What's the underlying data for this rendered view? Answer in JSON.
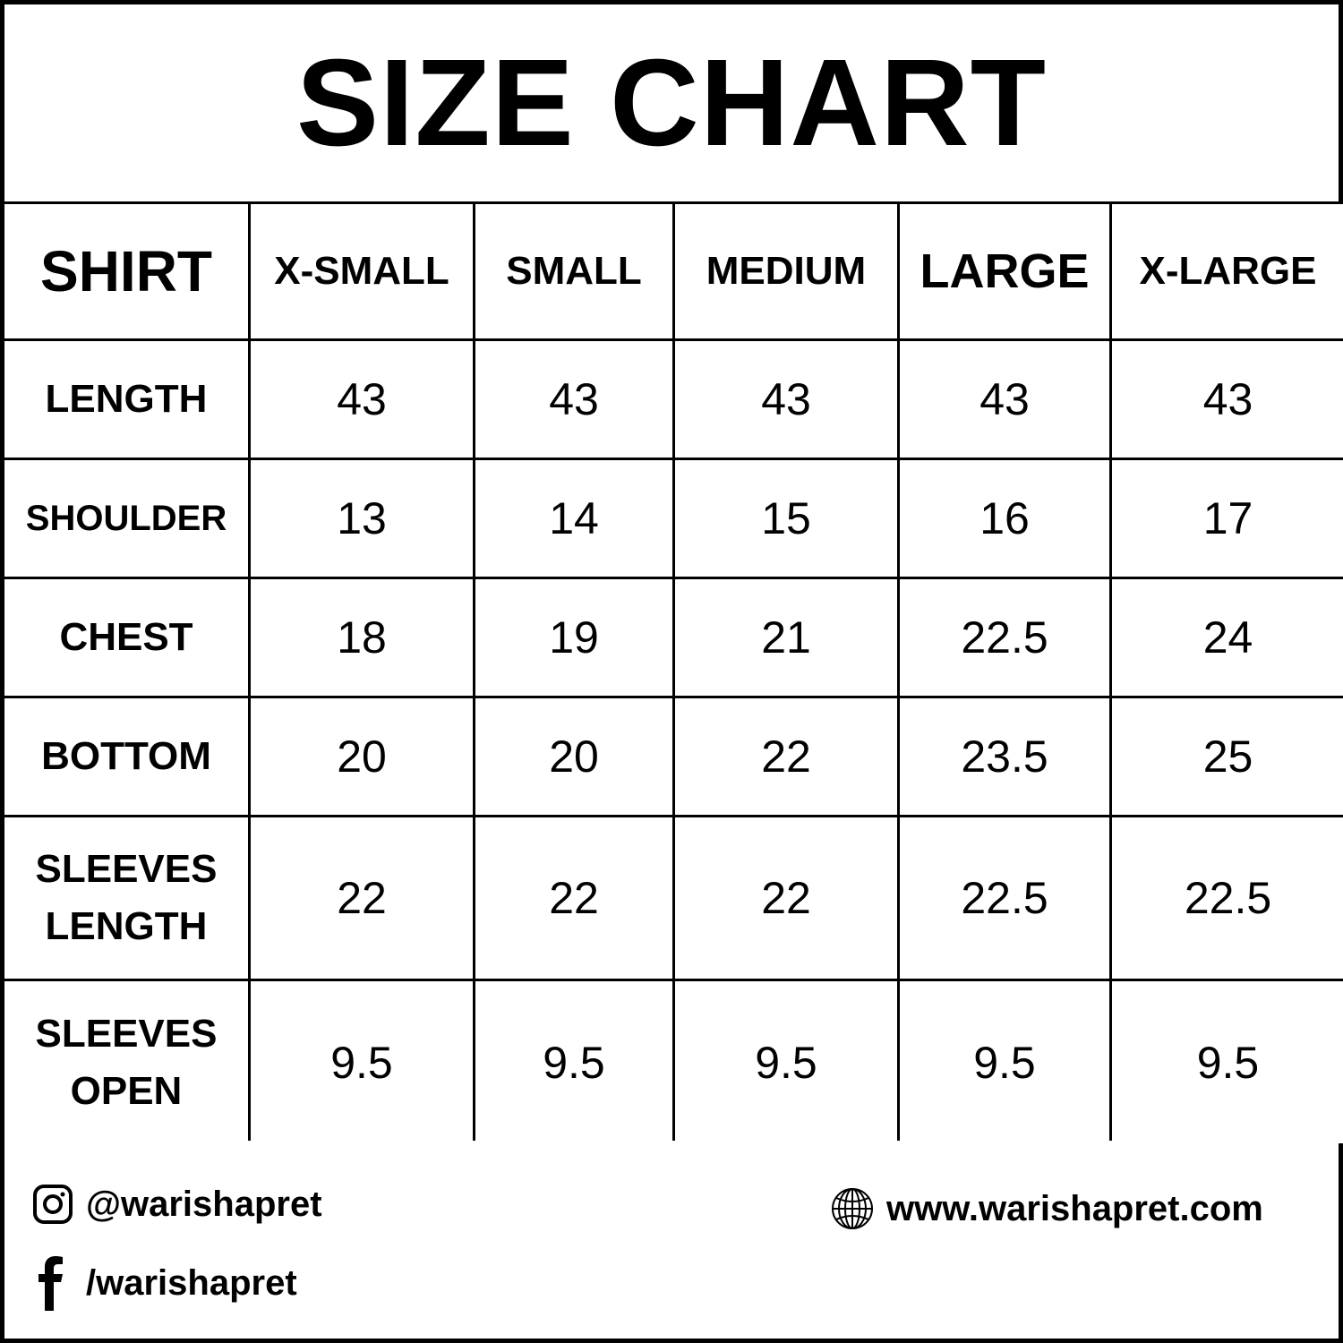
{
  "title": "SIZE CHART",
  "table": {
    "corner": "SHIRT",
    "sizes": [
      "X-SMALL",
      "SMALL",
      "MEDIUM",
      "LARGE",
      "X-LARGE"
    ],
    "rows": [
      {
        "label": "LENGTH",
        "values": [
          "43",
          "43",
          "43",
          "43",
          "43"
        ]
      },
      {
        "label": "SHOULDER",
        "values": [
          "13",
          "14",
          "15",
          "16",
          "17"
        ]
      },
      {
        "label": "CHEST",
        "values": [
          "18",
          "19",
          "21",
          "22.5",
          "24"
        ]
      },
      {
        "label": "BOTTOM",
        "values": [
          "20",
          "20",
          "22",
          "23.5",
          "25"
        ]
      },
      {
        "label": "SLEEVES LENGTH",
        "values": [
          "22",
          "22",
          "22",
          "22.5",
          "22.5"
        ]
      },
      {
        "label": "SLEEVES OPEN",
        "values": [
          "9.5",
          "9.5",
          "9.5",
          "9.5",
          "9.5"
        ]
      }
    ]
  },
  "footer": {
    "instagram": {
      "icon": "instagram-icon",
      "handle": "@warishapret"
    },
    "facebook": {
      "icon": "facebook-icon",
      "handle": "/warishapret"
    },
    "website": {
      "icon": "globe-icon",
      "url": "www.warishapret.com"
    }
  }
}
